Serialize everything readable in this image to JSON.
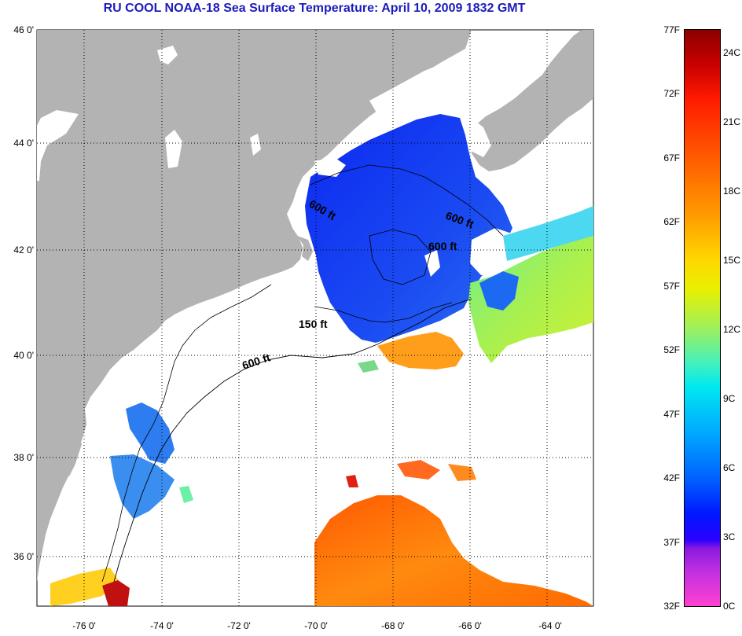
{
  "title": "RU COOL  NOAA-18  Sea Surface Temperature:  April 10, 2009 1832 GMT",
  "map": {
    "lat_labels": [
      "46 0'",
      "44 0'",
      "42 0'",
      "40 0'",
      "38 0'",
      "36 0'"
    ],
    "lon_labels": [
      "-76 0'",
      "-74 0'",
      "-72 0'",
      "-70 0'",
      "-68 0'",
      "-66 0'",
      "-64 0'"
    ],
    "contour_labels": [
      "600 ft",
      "600 ft",
      "600 ft",
      "150 ft",
      "600 ft"
    ],
    "colors": {
      "land": "#b3b3b3",
      "cloud": "#ffffff",
      "cold_water": "#1a3cf0",
      "warm_water": "#ff7a10"
    }
  },
  "colorbar": {
    "fahrenheit": [
      "77F",
      "72F",
      "67F",
      "62F",
      "57F",
      "52F",
      "47F",
      "42F",
      "37F",
      "32F"
    ],
    "celsius": [
      "24C",
      "21C",
      "18C",
      "15C",
      "12C",
      "9C",
      "6C",
      "3C",
      "0C"
    ],
    "range_f": [
      32,
      77
    ],
    "range_c": [
      0,
      25
    ]
  }
}
